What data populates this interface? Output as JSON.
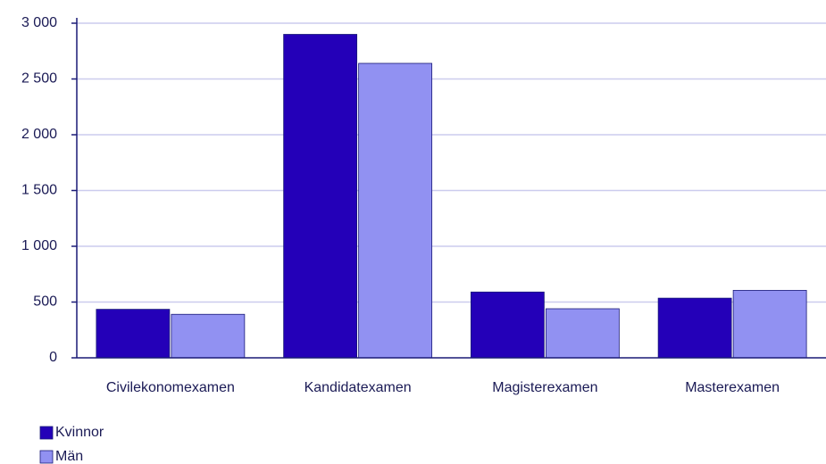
{
  "chart_data": {
    "type": "bar",
    "categories": [
      "Civilekonomexamen",
      "Kandidatexamen",
      "Magisterexamen",
      "Masterexamen"
    ],
    "series": [
      {
        "name": "Kvinnor",
        "color": "#2400b8",
        "values": [
          435,
          2900,
          590,
          535
        ]
      },
      {
        "name": "Män",
        "color": "#9191f2",
        "values": [
          390,
          2640,
          440,
          605
        ]
      }
    ],
    "ylim": [
      0,
      3000
    ],
    "yticks": [
      0,
      500,
      {
        "value": 1000,
        "label": "1 000"
      },
      {
        "value": 1500,
        "label": "1 500"
      },
      {
        "value": 2000,
        "label": "2 000"
      },
      {
        "value": 2500,
        "label": "2 500"
      },
      {
        "value": 3000,
        "label": "3 000"
      }
    ],
    "grid": true,
    "legend": "bottom-left"
  }
}
